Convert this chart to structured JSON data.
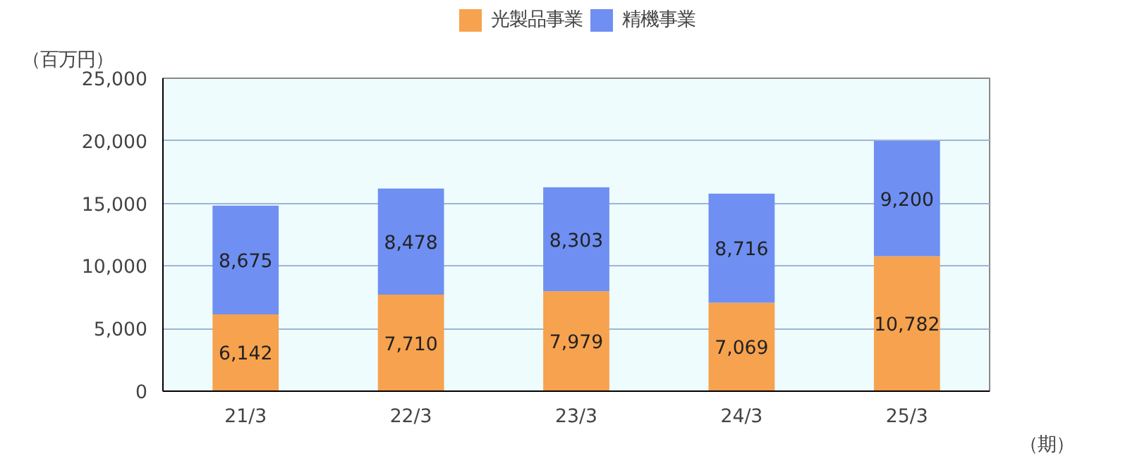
{
  "chart_data": {
    "type": "bar",
    "stacked": true,
    "ylabel": "（百万円）",
    "xlabel": "（期）",
    "categories": [
      "21/3",
      "22/3",
      "23/3",
      "24/3",
      "25/3"
    ],
    "series": [
      {
        "name": "光製品事業",
        "color": "#f7a24e",
        "values": [
          6142,
          7710,
          7979,
          7069,
          10782
        ],
        "value_labels": [
          "6,142",
          "7,710",
          "7,979",
          "7,069",
          "10,782"
        ]
      },
      {
        "name": "精機事業",
        "color": "#6f8ff2",
        "values": [
          8675,
          8478,
          8303,
          8716,
          9200
        ],
        "value_labels": [
          "8,675",
          "8,478",
          "8,303",
          "8,716",
          "9,200"
        ]
      }
    ],
    "ylim": [
      0,
      25000
    ],
    "yticks": [
      {
        "value": 0,
        "label": "0"
      },
      {
        "value": 5000,
        "label": "5,000"
      },
      {
        "value": 10000,
        "label": "10,000"
      },
      {
        "value": 15000,
        "label": "15,000"
      },
      {
        "value": 20000,
        "label": "20,000"
      },
      {
        "value": 25000,
        "label": "25,000"
      }
    ],
    "grid": "y",
    "legend": "top"
  }
}
